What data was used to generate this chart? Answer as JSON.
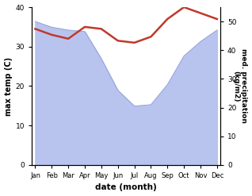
{
  "months": [
    "Jan",
    "Feb",
    "Mar",
    "Apr",
    "May",
    "Jun",
    "Jul",
    "Aug",
    "Sep",
    "Oct",
    "Nov",
    "Dec"
  ],
  "month_indices": [
    0,
    1,
    2,
    3,
    4,
    5,
    6,
    7,
    8,
    9,
    10,
    11
  ],
  "temperature": [
    34.5,
    33.0,
    32.0,
    35.0,
    34.5,
    31.5,
    31.0,
    32.5,
    37.0,
    40.0,
    38.5,
    37.0
  ],
  "precipitation": [
    50.0,
    48.0,
    47.0,
    46.5,
    37.0,
    26.0,
    20.5,
    21.0,
    28.0,
    38.0,
    43.0,
    47.0
  ],
  "temp_color": "#c0392b",
  "precip_fill_color": "#b8c4ee",
  "precip_line_color": "#9aa8dc",
  "ylabel_left": "max temp (C)",
  "ylabel_right": "med. precipitation\n(kg/m2)",
  "xlabel": "date (month)",
  "ylim_left": [
    0,
    40
  ],
  "ylim_right": [
    0,
    55
  ],
  "yticks_left": [
    0,
    10,
    20,
    30,
    40
  ],
  "yticks_right": [
    0,
    10,
    20,
    30,
    40,
    50
  ],
  "bg_color": "#ffffff"
}
